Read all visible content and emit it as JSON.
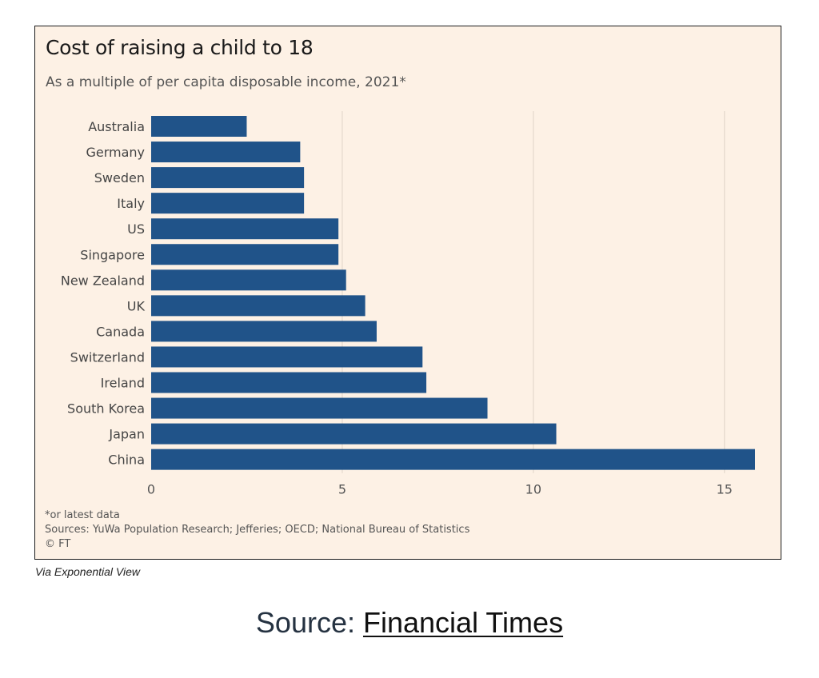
{
  "chart_data": {
    "type": "bar",
    "orientation": "horizontal",
    "title": "Cost of raising a child to 18",
    "subtitle": "As a multiple of per capita disposable income, 2021*",
    "categories": [
      "Australia",
      "Germany",
      "Sweden",
      "Italy",
      "US",
      "Singapore",
      "New Zealand",
      "UK",
      "Canada",
      "Switzerland",
      "Ireland",
      "South Korea",
      "Japan",
      "China"
    ],
    "values": [
      2.5,
      3.9,
      4.0,
      4.0,
      4.9,
      4.9,
      5.1,
      5.6,
      5.9,
      7.1,
      7.2,
      8.8,
      10.6,
      15.8
    ],
    "xlim": [
      0,
      15.8
    ],
    "x_ticks": [
      "0",
      "5",
      "10",
      "15"
    ],
    "grid": true,
    "bar_color": "#205389",
    "gridline_color": "#e3d8cc",
    "background_color": "#fdf1e5"
  },
  "footnotes": {
    "note": "*or latest data",
    "sources": "Sources: YuWa Population Research; Jefferies; OECD; National Bureau of Statistics",
    "copyright": "© FT"
  },
  "via_text": "Via Exponential View",
  "source": {
    "label": "Source: ",
    "link_text": "Financial Times"
  }
}
